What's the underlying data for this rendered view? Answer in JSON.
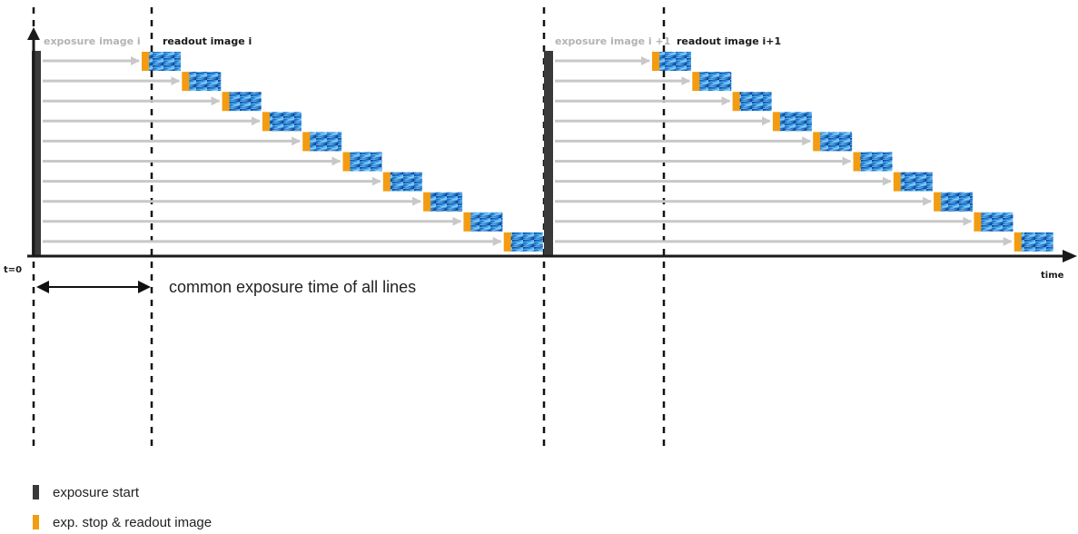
{
  "labels": {
    "exposure_i": "exposure image i",
    "readout_i": "readout image i",
    "exposure_i1": "exposure image i +1",
    "readout_i1": "readout image i+1",
    "t0": "t=0",
    "time": "time",
    "common_exposure": "common exposure time of all lines"
  },
  "legend": [
    {
      "label": "exposure start",
      "color": "#3a3a3a"
    },
    {
      "label": "exp. stop & readout image",
      "color": "#f39c12"
    }
  ],
  "colors": {
    "exposure_start": "#3a3a3a",
    "readout_marker": "#f39c12",
    "line_arrow": "#c8c8c8",
    "readout_image": "#1e73c8"
  }
}
